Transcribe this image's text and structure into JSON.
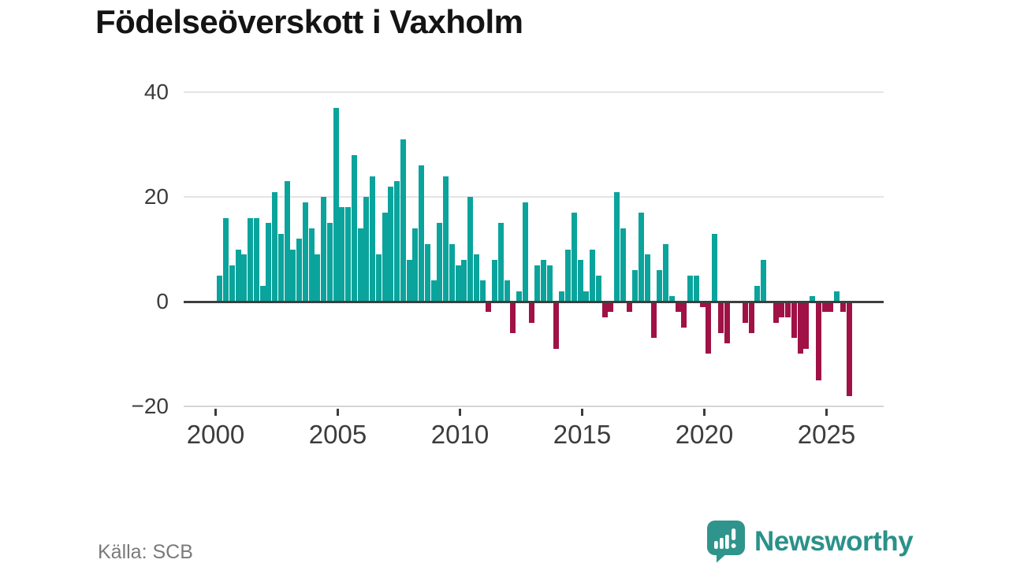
{
  "title": "Födelseöverskott i Vaxholm",
  "source": "Källa: SCB",
  "branding": {
    "name": "Newsworthy",
    "logo_icon": "newsworthy-speech-bubble-chart-icon",
    "color": "#2a9189"
  },
  "chart_data": {
    "type": "bar",
    "title": "Födelseöverskott i Vaxholm",
    "xlabel": "",
    "ylabel": "",
    "frequency": "quarterly",
    "x_start_year": 2000,
    "x_tick_labels": [
      "2000",
      "2005",
      "2010",
      "2015",
      "2020",
      "2025"
    ],
    "y_ticks": [
      40,
      20,
      0,
      -20
    ],
    "y_tick_labels": [
      "40",
      "20",
      "0",
      "−20"
    ],
    "ylim": [
      -20,
      40
    ],
    "grid": "horizontal",
    "legend": "none",
    "colors": {
      "positive": "#0aa49c",
      "negative": "#a01245",
      "zero_line": "#3e3e3e",
      "gridline": "#e4e4e4",
      "axis_text": "#3c3c3c"
    },
    "values_by_year": {
      "2000": [
        5,
        16,
        7,
        10
      ],
      "2001": [
        9,
        16,
        16,
        3
      ],
      "2002": [
        15,
        21,
        13,
        23
      ],
      "2003": [
        10,
        12,
        19,
        14
      ],
      "2004": [
        9,
        20,
        15,
        37
      ],
      "2005": [
        18,
        18,
        28,
        14
      ],
      "2006": [
        20,
        24,
        9,
        17
      ],
      "2007": [
        22,
        23,
        31,
        8
      ],
      "2008": [
        14,
        26,
        11,
        4
      ],
      "2009": [
        15,
        24,
        11,
        7
      ],
      "2010": [
        8,
        20,
        9,
        4
      ],
      "2011": [
        -2,
        8,
        15,
        4
      ],
      "2012": [
        -6,
        2,
        19,
        -4
      ],
      "2013": [
        7,
        8,
        7,
        -9
      ],
      "2014": [
        2,
        10,
        17,
        8
      ],
      "2015": [
        2,
        10,
        5,
        -3
      ],
      "2016": [
        -2,
        21,
        14,
        -2
      ],
      "2017": [
        6,
        17,
        9,
        -7
      ],
      "2018": [
        6,
        11,
        1,
        -2
      ],
      "2019": [
        -5,
        5,
        5,
        -1
      ],
      "2020": [
        -10,
        13,
        -6,
        -8
      ],
      "2021": [
        0,
        0,
        -4,
        -6
      ],
      "2022": [
        3,
        8,
        0,
        -4
      ],
      "2023": [
        -3,
        -3,
        -7,
        -10
      ],
      "2024": [
        -9,
        1,
        -15,
        -2
      ],
      "2025": [
        -2,
        2,
        -2,
        -18
      ]
    }
  }
}
